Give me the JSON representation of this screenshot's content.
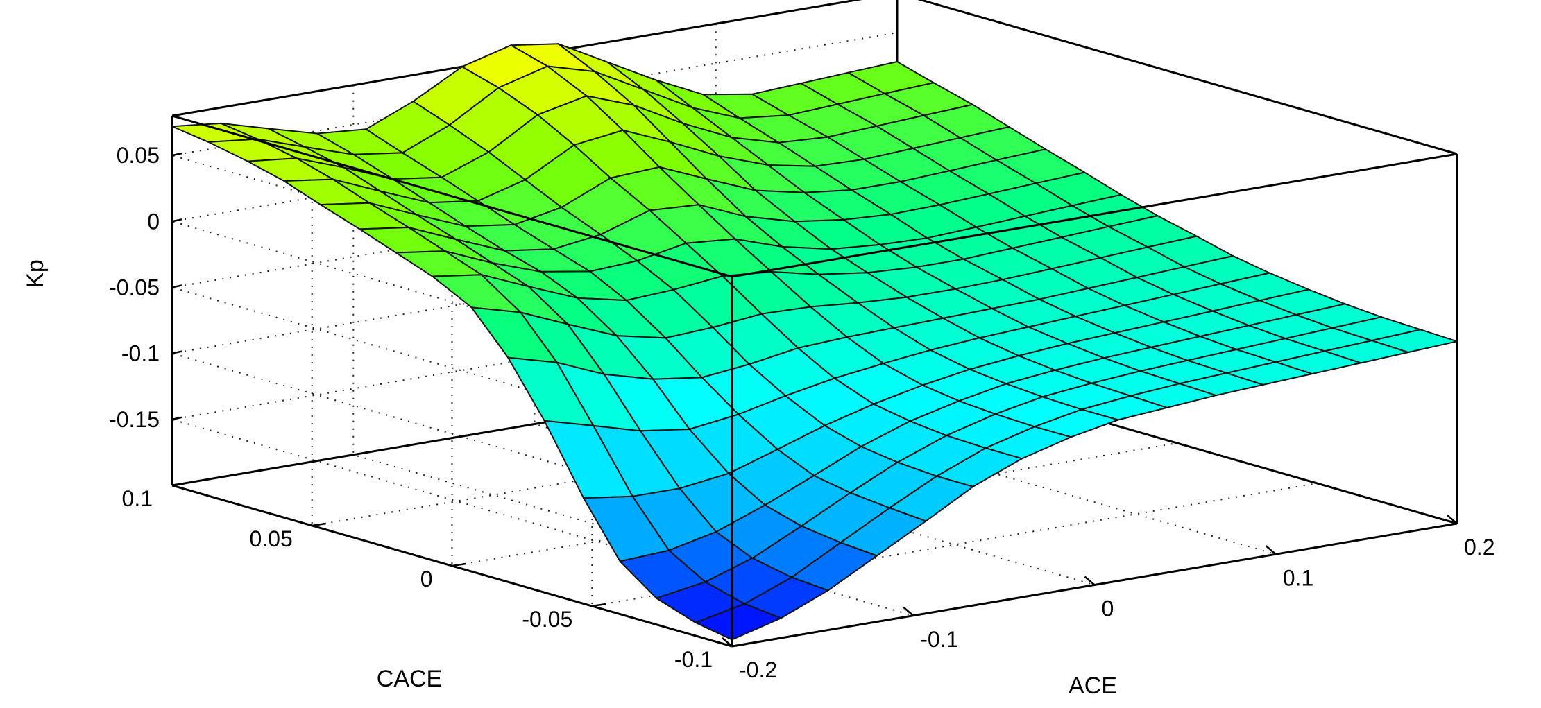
{
  "chart_data": {
    "type": "surface",
    "title": "",
    "zlabel": "Kp",
    "xlabel": "ACE",
    "ylabel": "CACE",
    "xlim": [
      -0.2,
      0.2
    ],
    "ylim": [
      -0.1,
      0.1
    ],
    "zlim": [
      -0.2,
      0.08
    ],
    "x_tick_labels": [
      "-0.2",
      "-0.1",
      "0",
      "0.1",
      "0.2"
    ],
    "y_tick_labels": [
      "-0.1",
      "-0.05",
      "0",
      "0.05",
      "0.1"
    ],
    "z_tick_labels": [
      "-0.15",
      "-0.1",
      "-0.05",
      "0",
      "0.05"
    ],
    "x_ticks": [
      -0.2,
      -0.1,
      0,
      0.1,
      0.2
    ],
    "y_ticks": [
      -0.1,
      -0.05,
      0,
      0.05,
      0.1
    ],
    "z_ticks": [
      -0.15,
      -0.1,
      -0.05,
      0,
      0.05
    ],
    "grid": true,
    "colormap": [
      "#0000ff",
      "#00b4ff",
      "#00ffff",
      "#00ff88",
      "#80ff00",
      "#ffff00"
    ],
    "x": [
      -0.2,
      -0.173,
      -0.147,
      -0.12,
      -0.093,
      -0.067,
      -0.04,
      -0.013,
      0.013,
      0.04,
      0.067,
      0.093,
      0.12,
      0.147,
      0.173,
      0.2
    ],
    "y": [
      -0.1,
      -0.087,
      -0.073,
      -0.06,
      -0.047,
      -0.033,
      -0.02,
      -0.007,
      0.007,
      0.02,
      0.033,
      0.047,
      0.06,
      0.073,
      0.087,
      0.1
    ],
    "z": [
      [
        -0.195,
        -0.185,
        -0.17,
        -0.15,
        -0.13,
        -0.11,
        -0.095,
        -0.085,
        -0.078,
        -0.075,
        -0.072,
        -0.07,
        -0.068,
        -0.066,
        -0.064,
        -0.062
      ],
      [
        -0.19,
        -0.182,
        -0.168,
        -0.148,
        -0.128,
        -0.11,
        -0.095,
        -0.085,
        -0.078,
        -0.074,
        -0.071,
        -0.069,
        -0.067,
        -0.065,
        -0.063,
        -0.061
      ],
      [
        -0.18,
        -0.174,
        -0.162,
        -0.144,
        -0.125,
        -0.108,
        -0.094,
        -0.084,
        -0.077,
        -0.073,
        -0.07,
        -0.068,
        -0.066,
        -0.064,
        -0.062,
        -0.06
      ],
      [
        -0.16,
        -0.158,
        -0.15,
        -0.136,
        -0.12,
        -0.104,
        -0.091,
        -0.082,
        -0.075,
        -0.071,
        -0.068,
        -0.066,
        -0.064,
        -0.062,
        -0.06,
        -0.058
      ],
      [
        -0.12,
        -0.125,
        -0.125,
        -0.12,
        -0.108,
        -0.096,
        -0.086,
        -0.078,
        -0.072,
        -0.068,
        -0.065,
        -0.063,
        -0.061,
        -0.059,
        -0.057,
        -0.055
      ],
      [
        -0.07,
        -0.08,
        -0.09,
        -0.095,
        -0.09,
        -0.082,
        -0.075,
        -0.07,
        -0.066,
        -0.063,
        -0.061,
        -0.059,
        -0.057,
        -0.055,
        -0.053,
        -0.051
      ],
      [
        -0.03,
        -0.04,
        -0.055,
        -0.065,
        -0.07,
        -0.066,
        -0.06,
        -0.058,
        -0.057,
        -0.056,
        -0.055,
        -0.054,
        -0.052,
        -0.05,
        -0.048,
        -0.046
      ],
      [
        0.0,
        -0.01,
        -0.025,
        -0.04,
        -0.048,
        -0.046,
        -0.042,
        -0.043,
        -0.046,
        -0.048,
        -0.048,
        -0.047,
        -0.045,
        -0.043,
        -0.041,
        -0.039
      ],
      [
        0.015,
        0.01,
        -0.005,
        -0.02,
        -0.028,
        -0.026,
        -0.022,
        -0.025,
        -0.033,
        -0.038,
        -0.04,
        -0.04,
        -0.038,
        -0.036,
        -0.034,
        -0.032
      ],
      [
        0.025,
        0.02,
        0.005,
        -0.008,
        -0.014,
        -0.012,
        -0.005,
        -0.008,
        -0.02,
        -0.028,
        -0.031,
        -0.032,
        -0.03,
        -0.028,
        -0.026,
        -0.024
      ],
      [
        0.035,
        0.03,
        0.015,
        0.0,
        -0.005,
        0.0,
        0.012,
        0.01,
        -0.005,
        -0.015,
        -0.02,
        -0.022,
        -0.021,
        -0.019,
        -0.017,
        -0.015
      ],
      [
        0.045,
        0.04,
        0.025,
        0.01,
        0.005,
        0.012,
        0.028,
        0.03,
        0.015,
        0.0,
        -0.008,
        -0.012,
        -0.012,
        -0.01,
        -0.008,
        -0.006
      ],
      [
        0.055,
        0.05,
        0.035,
        0.02,
        0.015,
        0.025,
        0.045,
        0.05,
        0.035,
        0.018,
        0.005,
        -0.002,
        -0.003,
        -0.001,
        0.001,
        0.003
      ],
      [
        0.062,
        0.058,
        0.045,
        0.03,
        0.025,
        0.038,
        0.06,
        0.068,
        0.055,
        0.035,
        0.018,
        0.008,
        0.006,
        0.008,
        0.01,
        0.012
      ],
      [
        0.068,
        0.064,
        0.052,
        0.04,
        0.035,
        0.05,
        0.072,
        0.082,
        0.072,
        0.052,
        0.032,
        0.018,
        0.014,
        0.016,
        0.018,
        0.02
      ],
      [
        0.072,
        0.068,
        0.058,
        0.048,
        0.045,
        0.06,
        0.08,
        0.09,
        0.085,
        0.065,
        0.045,
        0.028,
        0.022,
        0.024,
        0.026,
        0.028
      ]
    ]
  }
}
